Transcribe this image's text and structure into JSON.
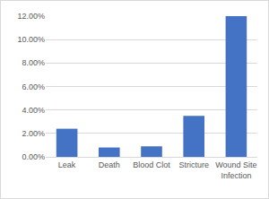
{
  "chart_data": {
    "type": "bar",
    "categories": [
      "Leak",
      "Death",
      "Blood Clot",
      "Stricture",
      "Wound Site Infection"
    ],
    "values": [
      2.4,
      0.8,
      0.9,
      3.5,
      12.0
    ],
    "color": "#4472c4",
    "ylim": [
      0,
      12
    ],
    "yticks": [
      {
        "value": 0,
        "label": "0.00%"
      },
      {
        "value": 2,
        "label": "2.00%"
      },
      {
        "value": 4,
        "label": "4.00%"
      },
      {
        "value": 6,
        "label": "6.00%"
      },
      {
        "value": 8,
        "label": "8.00%"
      },
      {
        "value": 10,
        "label": "10.00%"
      },
      {
        "value": 12,
        "label": "12.00%"
      }
    ],
    "grid": true
  }
}
